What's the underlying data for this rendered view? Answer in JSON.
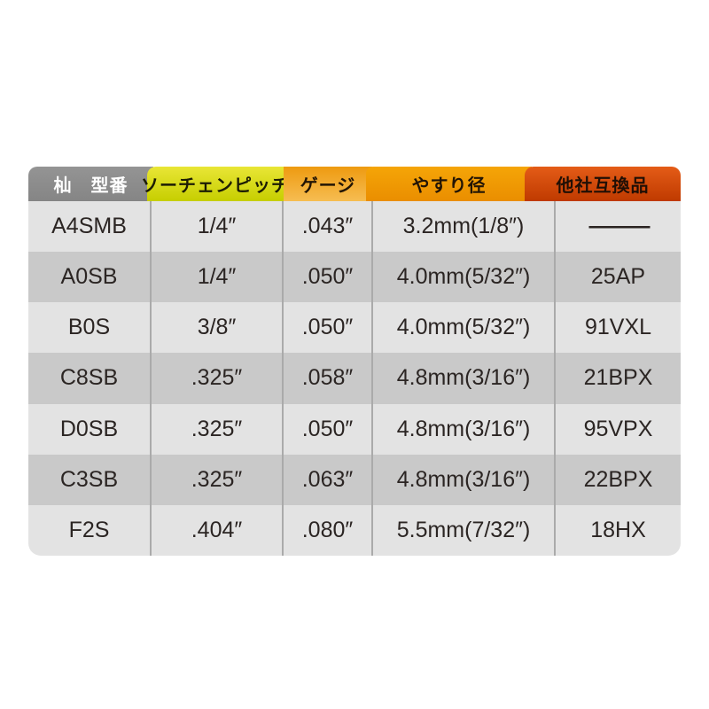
{
  "chart_data": {
    "type": "table",
    "columns": [
      "杣　型番",
      "ソーチェンピッチ",
      "ゲージ",
      "やすり径",
      "他社互換品"
    ],
    "rows": [
      [
        "A4SMB",
        "1/4″",
        ".043″",
        "3.2mm(1/8″)",
        "———"
      ],
      [
        "A0SB",
        "1/4″",
        ".050″",
        "4.0mm(5/32″)",
        "25AP"
      ],
      [
        "B0S",
        "3/8″",
        ".050″",
        "4.0mm(5/32″)",
        "91VXL"
      ],
      [
        "C8SB",
        ".325″",
        ".058″",
        "4.8mm(3/16″)",
        "21BPX"
      ],
      [
        "D0SB",
        ".325″",
        ".050″",
        "4.8mm(3/16″)",
        "95VPX"
      ],
      [
        "C3SB",
        ".325″",
        ".063″",
        "4.8mm(3/16″)",
        "22BPX"
      ],
      [
        "F2S",
        ".404″",
        ".080″",
        "5.5mm(7/32″)",
        "18HX"
      ]
    ],
    "layout": {
      "header_position": "top",
      "grid": "column-separators-only",
      "row_striping": true
    }
  },
  "colors": {
    "header_model_bg": "#8c8c8c",
    "header_pitch_bg": "#d4d90e",
    "header_gauge_bg": "#f2a931",
    "header_file_bg": "#f09a00",
    "header_compat_bg": "#d34a0b",
    "row_light": "#e3e3e3",
    "row_dark": "#c9c9c9",
    "separator": "#aaaaaa",
    "body_text": "#2b2523",
    "header_model_text": "#ffffff"
  }
}
